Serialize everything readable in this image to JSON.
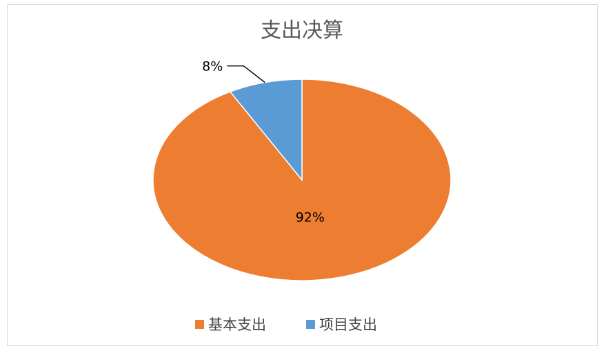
{
  "chart_data": {
    "type": "pie",
    "title": "支出决算",
    "categories": [
      "基本支出",
      "项目支出"
    ],
    "values": [
      92,
      8
    ],
    "labels": [
      "92%",
      "8%"
    ],
    "colors": [
      "#ED7D31",
      "#5B9BD5"
    ],
    "legend_position": "bottom",
    "start_angle_deg": 0,
    "direction": "clockwise"
  }
}
